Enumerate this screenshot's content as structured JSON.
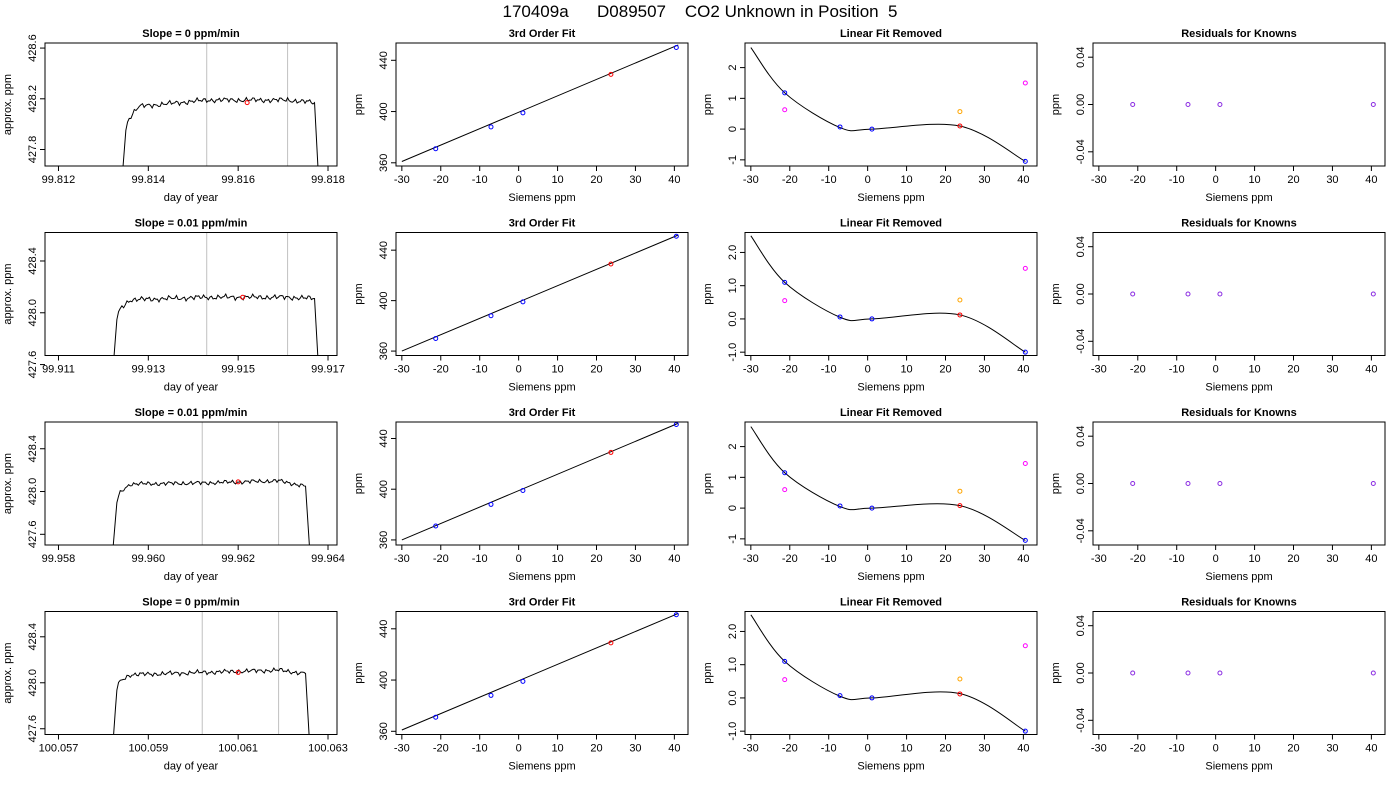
{
  "page": {
    "title": "170409a      D089507    CO2 Unknown in Position  5"
  },
  "colors": {
    "known": "#0000ff",
    "unknown": "#ff0000",
    "orange": "#ffa500",
    "magenta": "#ff00ff",
    "residual": "#8a2be2",
    "line": "#000000",
    "vline": "#c0c0c0"
  },
  "chart_data": [
    {
      "type": "line",
      "title": "Slope =  0  ppm/min",
      "xlabel": "day of year",
      "ylabel": "approx. ppm",
      "xlim": [
        99.8117,
        99.8182
      ],
      "ylim": [
        427.67,
        428.64
      ],
      "xticks": [
        99.812,
        99.814,
        99.816,
        99.818
      ],
      "xtick_labels": [
        "99.812",
        "99.814",
        "99.816",
        "99.818"
      ],
      "yticks": [
        427.8,
        428.2,
        428.6
      ],
      "ytick_labels": [
        "427.8",
        "428.2",
        "428.6"
      ],
      "trace": {
        "x": [
          99.8134,
          99.8135,
          99.8138,
          99.8153,
          99.8171,
          99.8177,
          99.8178
        ],
        "y": [
          427.5,
          427.95,
          428.14,
          428.19,
          428.19,
          428.17,
          427.5
        ]
      },
      "vlines": [
        99.8153,
        99.8171
      ],
      "marker": {
        "x": 99.8162,
        "y": 428.17
      }
    },
    {
      "type": "scatter",
      "title": "3rd Order Fit",
      "xlabel": "Siemens ppm",
      "ylabel": "ppm",
      "xlim": [
        -31.5,
        43.5
      ],
      "ylim": [
        357.5,
        453.5
      ],
      "xticks": [
        -30,
        -20,
        -10,
        0,
        10,
        20,
        30,
        40
      ],
      "xtick_labels": [
        "-30",
        "-20",
        "-10",
        "0",
        "10",
        "20",
        "30",
        "40"
      ],
      "yticks": [
        360,
        400,
        440
      ],
      "ytick_labels": [
        "360",
        "400",
        "440"
      ],
      "line": {
        "x": [
          -30,
          41
        ],
        "y": [
          361,
          452
        ]
      },
      "series": [
        {
          "color": "known",
          "x": [
            -21.3,
            -7.1,
            1.1,
            40.5
          ],
          "y": [
            371,
            388,
            399,
            450
          ]
        },
        {
          "color": "unknown",
          "x": [
            23.7
          ],
          "y": [
            429
          ]
        }
      ]
    },
    {
      "type": "scatter",
      "title": "Linear Fit Removed",
      "xlabel": "Siemens ppm",
      "ylabel": "ppm",
      "xlim": [
        -31.5,
        43.5
      ],
      "ylim": [
        -1.2,
        2.8
      ],
      "xticks": [
        -30,
        -20,
        -10,
        0,
        10,
        20,
        30,
        40
      ],
      "xtick_labels": [
        "-30",
        "-20",
        "-10",
        "0",
        "10",
        "20",
        "30",
        "40"
      ],
      "yticks": [
        -1,
        0,
        1,
        2
      ],
      "ytick_labels": [
        "-1",
        "0",
        "1",
        "2"
      ],
      "curve": {
        "x": [
          -30,
          -21.3,
          -7.1,
          1.1,
          23.7,
          40.5
        ],
        "y": [
          2.65,
          1.18,
          0.05,
          0.0,
          0.1,
          -1.05
        ]
      },
      "series": [
        {
          "color": "known",
          "x": [
            -21.3,
            -7.1,
            1.1,
            40.5
          ],
          "y": [
            1.18,
            0.07,
            0.0,
            -1.05
          ]
        },
        {
          "color": "unknown",
          "x": [
            23.7
          ],
          "y": [
            0.1
          ]
        },
        {
          "color": "magenta",
          "x": [
            -21.3,
            40.5
          ],
          "y": [
            0.63,
            1.5
          ]
        },
        {
          "color": "orange",
          "x": [
            23.7
          ],
          "y": [
            0.57
          ]
        }
      ]
    },
    {
      "type": "scatter",
      "title": "Residuals for Knowns",
      "xlabel": "Siemens ppm",
      "ylabel": "ppm",
      "xlim": [
        -31.5,
        43.5
      ],
      "ylim": [
        -0.052,
        0.052
      ],
      "xticks": [
        -30,
        -20,
        -10,
        0,
        10,
        20,
        30,
        40
      ],
      "xtick_labels": [
        "-30",
        "-20",
        "-10",
        "0",
        "10",
        "20",
        "30",
        "40"
      ],
      "yticks": [
        -0.04,
        0.0,
        0.04
      ],
      "ytick_labels": [
        "-0.04",
        "0.00",
        "0.04"
      ],
      "series": [
        {
          "color": "residual",
          "x": [
            -21.3,
            -7.1,
            1.1,
            40.5
          ],
          "y": [
            0,
            0,
            0,
            0
          ]
        }
      ]
    },
    {
      "type": "line",
      "title": "Slope =  0.01  ppm/min",
      "xlabel": "day of year",
      "ylabel": "approx. ppm",
      "xlim": [
        99.9107,
        99.9172
      ],
      "ylim": [
        427.67,
        428.62
      ],
      "xticks": [
        99.911,
        99.913,
        99.915,
        99.917
      ],
      "xtick_labels": [
        "99.911",
        "99.913",
        "99.915",
        "99.917"
      ],
      "yticks": [
        427.6,
        428.0,
        428.4
      ],
      "ytick_labels": [
        "427.6",
        "428.0",
        "428.4"
      ],
      "trace": {
        "x": [
          99.9122,
          99.9123,
          99.9126,
          99.9143,
          99.9161,
          99.9167,
          99.9168
        ],
        "y": [
          427.5,
          427.95,
          428.1,
          428.12,
          428.12,
          428.11,
          427.5
        ]
      },
      "vlines": [
        99.9143,
        99.9161
      ],
      "marker": {
        "x": 99.9151,
        "y": 428.12
      }
    },
    {
      "type": "scatter",
      "title": "3rd Order Fit",
      "xlabel": "Siemens ppm",
      "ylabel": "ppm",
      "xlim": [
        -31.5,
        43.5
      ],
      "ylim": [
        356.5,
        454
      ],
      "xticks": [
        -30,
        -20,
        -10,
        0,
        10,
        20,
        30,
        40
      ],
      "xtick_labels": [
        "-30",
        "-20",
        "-10",
        "0",
        "10",
        "20",
        "30",
        "40"
      ],
      "yticks": [
        360,
        400,
        440
      ],
      "ytick_labels": [
        "360",
        "400",
        "440"
      ],
      "line": {
        "x": [
          -30,
          41
        ],
        "y": [
          360,
          452
        ]
      },
      "series": [
        {
          "color": "known",
          "x": [
            -21.3,
            -7.1,
            1.1,
            40.5
          ],
          "y": [
            370,
            388,
            399,
            451
          ]
        },
        {
          "color": "unknown",
          "x": [
            23.7
          ],
          "y": [
            429
          ]
        }
      ]
    },
    {
      "type": "scatter",
      "title": "Linear Fit Removed",
      "xlabel": "Siemens ppm",
      "ylabel": "ppm",
      "xlim": [
        -31.5,
        43.5
      ],
      "ylim": [
        -1.1,
        2.6
      ],
      "xticks": [
        -30,
        -20,
        -10,
        0,
        10,
        20,
        30,
        40
      ],
      "xtick_labels": [
        "-30",
        "-20",
        "-10",
        "0",
        "10",
        "20",
        "30",
        "40"
      ],
      "yticks": [
        -1.0,
        0.0,
        1.0,
        2.0
      ],
      "ytick_labels": [
        "-1.0",
        "0.0",
        "1.0",
        "2.0"
      ],
      "curve": {
        "x": [
          -30,
          -21.3,
          -7.1,
          1.1,
          23.7,
          40.5
        ],
        "y": [
          2.5,
          1.1,
          0.05,
          0.0,
          0.12,
          -1.0
        ]
      },
      "series": [
        {
          "color": "known",
          "x": [
            -21.3,
            -7.1,
            1.1,
            40.5
          ],
          "y": [
            1.1,
            0.06,
            0.0,
            -1.0
          ]
        },
        {
          "color": "unknown",
          "x": [
            23.7
          ],
          "y": [
            0.12
          ]
        },
        {
          "color": "magenta",
          "x": [
            -21.3,
            40.5
          ],
          "y": [
            0.55,
            1.52
          ]
        },
        {
          "color": "orange",
          "x": [
            23.7
          ],
          "y": [
            0.57
          ]
        }
      ]
    },
    {
      "type": "scatter",
      "title": "Residuals for Knowns",
      "xlabel": "Siemens ppm",
      "ylabel": "ppm",
      "xlim": [
        -31.5,
        43.5
      ],
      "ylim": [
        -0.052,
        0.052
      ],
      "xticks": [
        -30,
        -20,
        -10,
        0,
        10,
        20,
        30,
        40
      ],
      "xtick_labels": [
        "-30",
        "-20",
        "-10",
        "0",
        "10",
        "20",
        "30",
        "40"
      ],
      "yticks": [
        -0.04,
        0.0,
        0.04
      ],
      "ytick_labels": [
        "-0.04",
        "0.00",
        "0.04"
      ],
      "series": [
        {
          "color": "residual",
          "x": [
            -21.3,
            -7.1,
            1.1,
            40.5
          ],
          "y": [
            0,
            0,
            0,
            0
          ]
        }
      ]
    },
    {
      "type": "line",
      "title": "Slope =  0.01  ppm/min",
      "xlabel": "day of year",
      "ylabel": "approx. ppm",
      "xlim": [
        99.9577,
        99.9642
      ],
      "ylim": [
        427.5,
        428.65
      ],
      "xticks": [
        99.958,
        99.96,
        99.962,
        99.964
      ],
      "xtick_labels": [
        "99.958",
        "99.960",
        "99.962",
        "99.964"
      ],
      "yticks": [
        427.6,
        428.0,
        428.4
      ],
      "ytick_labels": [
        "427.6",
        "428.0",
        "428.4"
      ],
      "trace": {
        "x": [
          99.9592,
          99.9593,
          99.9596,
          99.9612,
          99.9629,
          99.9635,
          99.9636
        ],
        "y": [
          427.4,
          427.9,
          428.07,
          428.08,
          428.1,
          428.05,
          427.4
        ]
      },
      "vlines": [
        99.9612,
        99.9629
      ],
      "marker": {
        "x": 99.962,
        "y": 428.09
      }
    },
    {
      "type": "scatter",
      "title": "3rd Order Fit",
      "xlabel": "Siemens ppm",
      "ylabel": "ppm",
      "xlim": [
        -31.5,
        43.5
      ],
      "ylim": [
        356,
        453
      ],
      "xticks": [
        -30,
        -20,
        -10,
        0,
        10,
        20,
        30,
        40
      ],
      "xtick_labels": [
        "-30",
        "-20",
        "-10",
        "0",
        "10",
        "20",
        "30",
        "40"
      ],
      "yticks": [
        360,
        400,
        440
      ],
      "ytick_labels": [
        "360",
        "400",
        "440"
      ],
      "line": {
        "x": [
          -30,
          41
        ],
        "y": [
          360,
          452
        ]
      },
      "series": [
        {
          "color": "known",
          "x": [
            -21.3,
            -7.1,
            1.1,
            40.5
          ],
          "y": [
            371,
            388,
            399,
            451
          ]
        },
        {
          "color": "unknown",
          "x": [
            23.7
          ],
          "y": [
            429
          ]
        }
      ]
    },
    {
      "type": "scatter",
      "title": "Linear Fit Removed",
      "xlabel": "Siemens ppm",
      "ylabel": "ppm",
      "xlim": [
        -31.5,
        43.5
      ],
      "ylim": [
        -1.2,
        2.8
      ],
      "xticks": [
        -30,
        -20,
        -10,
        0,
        10,
        20,
        30,
        40
      ],
      "xtick_labels": [
        "-30",
        "-20",
        "-10",
        "0",
        "10",
        "20",
        "30",
        "40"
      ],
      "yticks": [
        -1,
        0,
        1,
        2
      ],
      "ytick_labels": [
        "-1",
        "0",
        "1",
        "2"
      ],
      "curve": {
        "x": [
          -30,
          -21.3,
          -7.1,
          1.1,
          23.7,
          40.5
        ],
        "y": [
          2.65,
          1.15,
          0.05,
          0.0,
          0.08,
          -1.05
        ]
      },
      "series": [
        {
          "color": "known",
          "x": [
            -21.3,
            -7.1,
            1.1,
            40.5
          ],
          "y": [
            1.15,
            0.07,
            0.0,
            -1.05
          ]
        },
        {
          "color": "unknown",
          "x": [
            23.7
          ],
          "y": [
            0.08
          ]
        },
        {
          "color": "magenta",
          "x": [
            -21.3,
            40.5
          ],
          "y": [
            0.6,
            1.45
          ]
        },
        {
          "color": "orange",
          "x": [
            23.7
          ],
          "y": [
            0.55
          ]
        }
      ]
    },
    {
      "type": "scatter",
      "title": "Residuals for Knowns",
      "xlabel": "Siemens ppm",
      "ylabel": "ppm",
      "xlim": [
        -31.5,
        43.5
      ],
      "ylim": [
        -0.052,
        0.052
      ],
      "xticks": [
        -30,
        -20,
        -10,
        0,
        10,
        20,
        30,
        40
      ],
      "xtick_labels": [
        "-30",
        "-20",
        "-10",
        "0",
        "10",
        "20",
        "30",
        "40"
      ],
      "yticks": [
        -0.04,
        0.0,
        0.04
      ],
      "ytick_labels": [
        "-0.04",
        "0.00",
        "0.04"
      ],
      "series": [
        {
          "color": "residual",
          "x": [
            -21.3,
            -7.1,
            1.1,
            40.5
          ],
          "y": [
            0,
            0,
            0,
            0
          ]
        }
      ]
    },
    {
      "type": "line",
      "title": "Slope =  0  ppm/min",
      "xlabel": "day of year",
      "ylabel": "approx. ppm",
      "xlim": [
        100.0567,
        100.0632
      ],
      "ylim": [
        427.55,
        428.62
      ],
      "xticks": [
        100.057,
        100.059,
        100.061,
        100.063
      ],
      "xtick_labels": [
        "100.057",
        "100.059",
        "100.061",
        "100.063"
      ],
      "yticks": [
        427.6,
        428.0,
        428.4
      ],
      "ytick_labels": [
        "427.6",
        "428.0",
        "428.4"
      ],
      "trace": {
        "x": [
          100.0582,
          100.0583,
          100.0586,
          100.0602,
          100.0619,
          100.0625,
          100.0626
        ],
        "y": [
          427.4,
          427.95,
          428.07,
          428.09,
          428.11,
          428.08,
          427.4
        ]
      },
      "vlines": [
        100.0602,
        100.0619
      ],
      "marker": {
        "x": 100.061,
        "y": 428.09
      }
    },
    {
      "type": "scatter",
      "title": "3rd Order Fit",
      "xlabel": "Siemens ppm",
      "ylabel": "ppm",
      "xlim": [
        -31.5,
        43.5
      ],
      "ylim": [
        357.5,
        453.5
      ],
      "xticks": [
        -30,
        -20,
        -10,
        0,
        10,
        20,
        30,
        40
      ],
      "xtick_labels": [
        "-30",
        "-20",
        "-10",
        "0",
        "10",
        "20",
        "30",
        "40"
      ],
      "yticks": [
        360,
        400,
        440
      ],
      "ytick_labels": [
        "360",
        "400",
        "440"
      ],
      "line": {
        "x": [
          -30,
          41
        ],
        "y": [
          361,
          452
        ]
      },
      "series": [
        {
          "color": "known",
          "x": [
            -21.3,
            -7.1,
            1.1,
            40.5
          ],
          "y": [
            371,
            388,
            399,
            451
          ]
        },
        {
          "color": "unknown",
          "x": [
            23.7
          ],
          "y": [
            429
          ]
        }
      ]
    },
    {
      "type": "scatter",
      "title": "Linear Fit Removed",
      "xlabel": "Siemens ppm",
      "ylabel": "ppm",
      "xlim": [
        -31.5,
        43.5
      ],
      "ylim": [
        -1.1,
        2.6
      ],
      "xticks": [
        -30,
        -20,
        -10,
        0,
        10,
        20,
        30,
        40
      ],
      "xtick_labels": [
        "-30",
        "-20",
        "-10",
        "0",
        "10",
        "20",
        "30",
        "40"
      ],
      "yticks": [
        -1.0,
        0.0,
        1.0,
        2.0
      ],
      "ytick_labels": [
        "-1.0",
        "0.0",
        "1.0",
        "2.0"
      ],
      "curve": {
        "x": [
          -30,
          -21.3,
          -7.1,
          1.1,
          23.7,
          40.5
        ],
        "y": [
          2.5,
          1.1,
          0.05,
          0.0,
          0.13,
          -1.0
        ]
      },
      "series": [
        {
          "color": "known",
          "x": [
            -21.3,
            -7.1,
            1.1,
            40.5
          ],
          "y": [
            1.1,
            0.07,
            0.0,
            -1.0
          ]
        },
        {
          "color": "unknown",
          "x": [
            23.7
          ],
          "y": [
            0.12
          ]
        },
        {
          "color": "magenta",
          "x": [
            -21.3,
            40.5
          ],
          "y": [
            0.55,
            1.57
          ]
        },
        {
          "color": "orange",
          "x": [
            23.7
          ],
          "y": [
            0.57
          ]
        }
      ]
    },
    {
      "type": "scatter",
      "title": "Residuals for Knowns",
      "xlabel": "Siemens ppm",
      "ylabel": "ppm",
      "xlim": [
        -31.5,
        43.5
      ],
      "ylim": [
        -0.052,
        0.052
      ],
      "xticks": [
        -30,
        -20,
        -10,
        0,
        10,
        20,
        30,
        40
      ],
      "xtick_labels": [
        "-30",
        "-20",
        "-10",
        "0",
        "10",
        "20",
        "30",
        "40"
      ],
      "yticks": [
        -0.04,
        0.0,
        0.04
      ],
      "ytick_labels": [
        "-0.04",
        "0.00",
        "0.04"
      ],
      "series": [
        {
          "color": "residual",
          "x": [
            -21.3,
            -7.1,
            1.1,
            40.5
          ],
          "y": [
            0,
            0,
            0,
            0
          ]
        }
      ]
    }
  ]
}
